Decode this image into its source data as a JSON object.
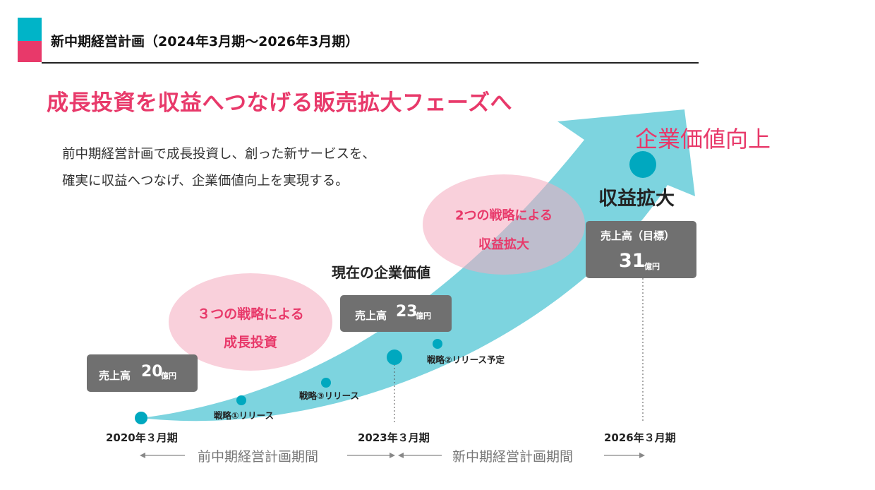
{
  "header": {
    "title": "新中期経営計画（2024年3月期～2026年3月期）",
    "accent_top_color": "#00b4c8",
    "accent_bottom_color": "#e8396a"
  },
  "headline": "成長投資を収益へつなげる販売拡大フェーズへ",
  "description": {
    "line1": "前中期経営計画で成長投資し、創った新サービスを、",
    "line2": "確実に収益へつなげ、企業価値向上を実現する。"
  },
  "goal": {
    "value_label": "企業価値向上",
    "profit_label": "収益拡大"
  },
  "bubbles": {
    "growth": {
      "line1": "３つの戦略による",
      "line2": "成長投資"
    },
    "profit": {
      "line1": "2つの戦略による",
      "line2": "収益拡大"
    }
  },
  "boxes": {
    "start": {
      "label": "売上高",
      "number": "20",
      "unit": "億円"
    },
    "current": {
      "label": "売上高",
      "number": "23",
      "unit": "億円"
    },
    "target": {
      "label": "売上高（目標）",
      "number": "31",
      "unit": "億円"
    }
  },
  "current_value_label": "現在の企業価値",
  "milestones": {
    "strategy1": "戦略①リリース",
    "strategy3": "戦略③リリース",
    "strategy2": "戦略②リリース予定"
  },
  "years": {
    "y2020": "2020年３月期",
    "y2023": "2023年３月期",
    "y2026": "2026年３月期"
  },
  "periods": {
    "previous": "前中期経営計画期間",
    "new": "新中期経営計画期間"
  },
  "colors": {
    "accent_pink": "#e8396a",
    "accent_teal": "#00a8bf",
    "arrow_fill": "#6fcfdc",
    "box_gray": "#707070",
    "bubble_pink": "#f4aabe"
  }
}
